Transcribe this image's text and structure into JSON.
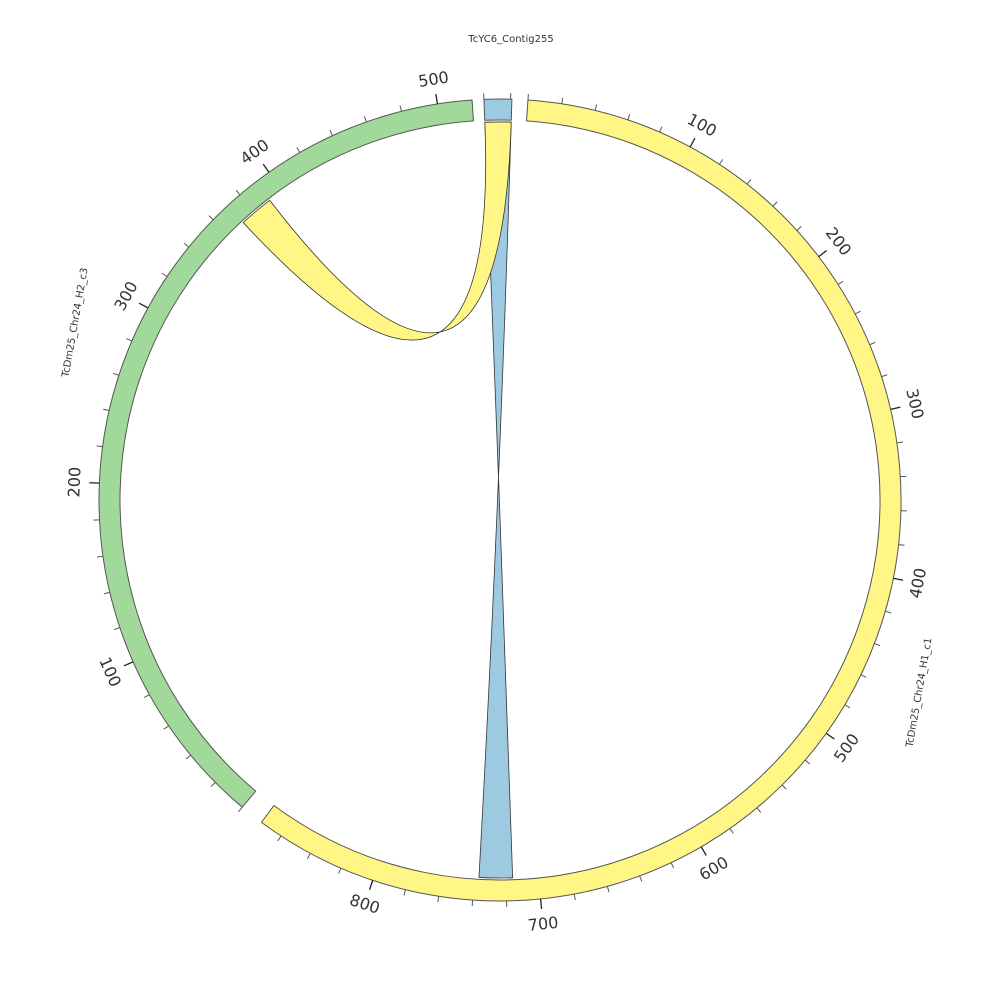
{
  "diagram": {
    "type": "circos",
    "sequences": [
      {
        "id": "contig",
        "label": "TcYC6_Contig255",
        "length": 21,
        "color": "#9ecae1",
        "start_deg": -2.3,
        "end_deg": 1.7
      },
      {
        "id": "h1",
        "label": "TcDm25_Chr24_H1_c1",
        "length": 874,
        "color": "#fff685",
        "start_deg": 4,
        "end_deg": 216.5
      },
      {
        "id": "h2",
        "label": "TcDm25_Chr24_H2_c3",
        "length": 519,
        "color": "#a1d99b",
        "start_deg": 220,
        "end_deg": 356
      }
    ],
    "tick_labels": {
      "h1": [
        "100",
        "200",
        "300",
        "400",
        "500",
        "600",
        "700",
        "800"
      ],
      "h2": [
        "100",
        "200",
        "300",
        "400",
        "500"
      ]
    },
    "links": [
      {
        "from": "contig",
        "from_range": [
          0,
          21
        ],
        "to": "h1",
        "to_range": [
          716,
          737
        ],
        "color": "#9ecae1"
      },
      {
        "from": "contig",
        "from_range": [
          0,
          21
        ],
        "to": "h2",
        "to_range": [
          371,
          391
        ],
        "color": "#fff685"
      }
    ]
  }
}
